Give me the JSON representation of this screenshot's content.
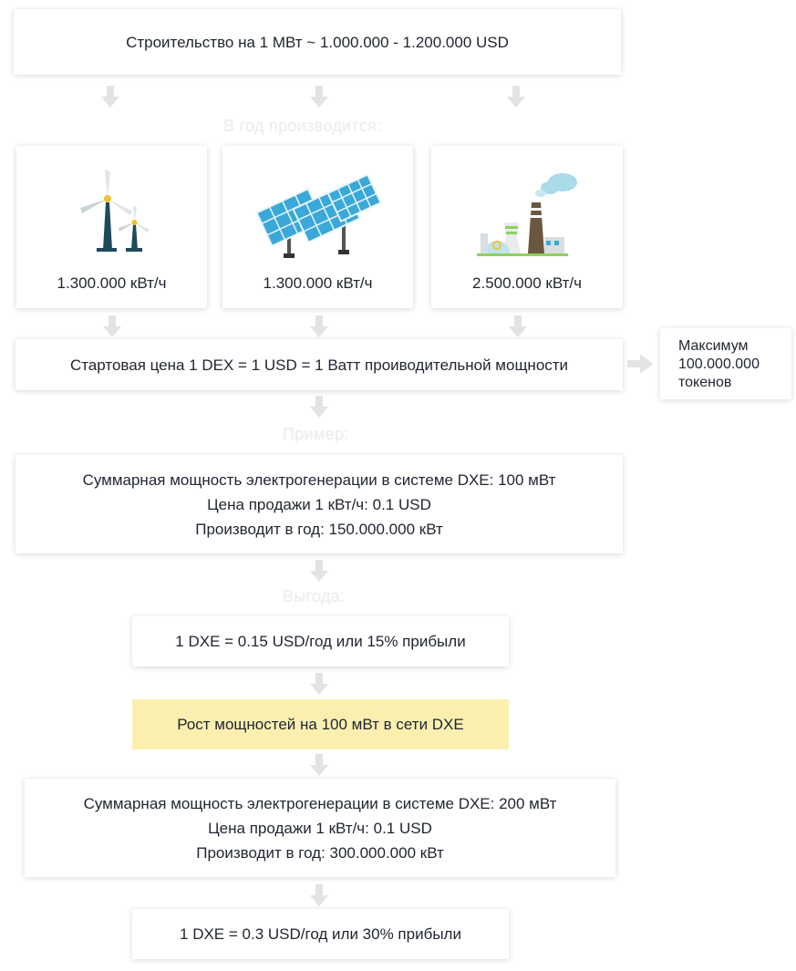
{
  "top_box": "Строительство на 1 МВт ~ 1.000.000 - 1.200.000 USD",
  "caption_per_year": "В год производится:",
  "cards": [
    {
      "icon": "wind-turbines-icon",
      "value": "1.300.000 кВт/ч"
    },
    {
      "icon": "solar-panels-icon",
      "value": "1.300.000 кВт/ч"
    },
    {
      "icon": "power-plant-icon",
      "value": "2.500.000 кВт/ч"
    }
  ],
  "start_price": "Стартовая цена 1 DEX = 1 USD = 1 Ватт проиводительной мощности",
  "max_tokens": [
    "Максимум",
    "100.000.000",
    "токенов"
  ],
  "caption_example": "Пример:",
  "example1": [
    "Суммарная мощность электрогенерации в системе DXE: 100 мВт",
    "Цена продажи 1 кВт/ч: 0.1 USD",
    "Производит в год: 150.000.000 кВт"
  ],
  "caption_profit": "Выгода:",
  "profit1": "1 DXE = 0.15 USD/год или 15% прибыли",
  "growth": "Рост мощностей на 100 мВт в сети DXE",
  "example2": [
    "Суммарная мощность электрогенерации в системе DXE: 200 мВт",
    "Цена продажи 1 кВт/ч: 0.1 USD",
    "Производит в год: 300.000.000 кВт"
  ],
  "profit2": "1 DXE = 0.3 USD/год или 30% прибыли",
  "colors": {
    "arrow": "#e3e3e3",
    "highlight": "#fbefb0",
    "solar_blue": "#3aa8d8",
    "turbine_dark": "#1e4a5c"
  }
}
